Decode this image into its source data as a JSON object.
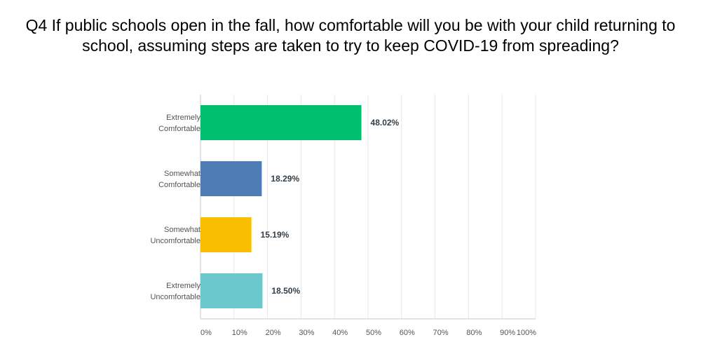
{
  "chart_data": {
    "type": "bar",
    "orientation": "horizontal",
    "title": "Q4 If public schools open in the fall, how comfortable will you be with your child returning to school, assuming steps are taken to try to keep COVID-19 from spreading?",
    "categories": [
      [
        "Extremely",
        "Comfortable"
      ],
      [
        "Somewhat",
        "Comfortable"
      ],
      [
        "Somewhat",
        "Uncomfortable"
      ],
      [
        "Extremely",
        "Uncomfortable"
      ]
    ],
    "values": [
      48.02,
      18.29,
      15.19,
      18.5
    ],
    "value_labels": [
      "48.02%",
      "18.29%",
      "15.19%",
      "18.50%"
    ],
    "colors": [
      "#00bf6f",
      "#507cb6",
      "#f9be00",
      "#6bc8cd"
    ],
    "xlim": [
      0,
      100
    ],
    "x_ticks": [
      0,
      10,
      20,
      30,
      40,
      50,
      60,
      70,
      80,
      90,
      100
    ],
    "x_tick_labels": [
      "0%",
      "10%",
      "20%",
      "30%",
      "40%",
      "50%",
      "60%",
      "70%",
      "80%",
      "90%",
      "100%"
    ],
    "grid": true,
    "legend": "none"
  }
}
